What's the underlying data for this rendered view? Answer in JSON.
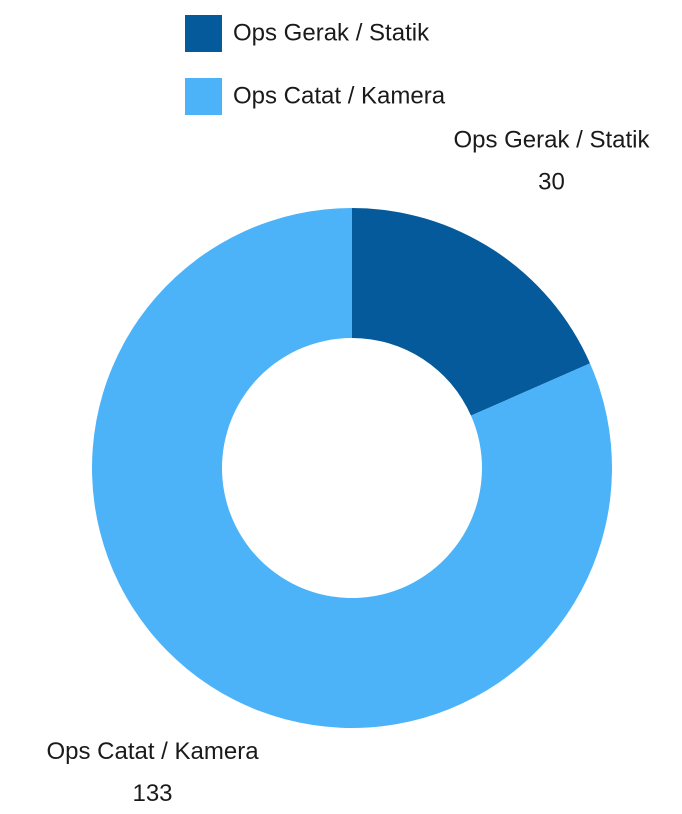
{
  "chart_data": {
    "type": "donut",
    "categories": [
      "Ops Gerak / Statik",
      "Ops Catat / Kamera"
    ],
    "values": [
      30,
      133
    ],
    "colors": [
      "#045a9a",
      "#4db3f9"
    ],
    "legend": "top"
  }
}
